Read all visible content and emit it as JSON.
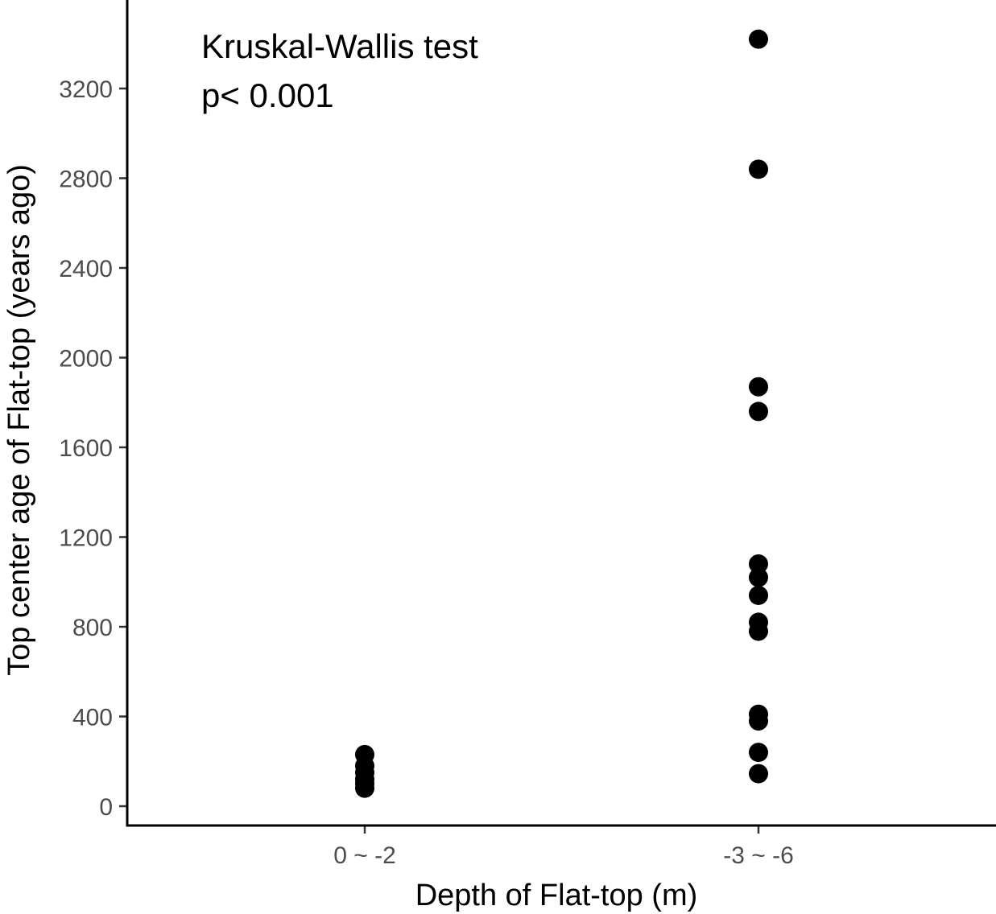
{
  "chart_data": {
    "type": "scatter",
    "title": "",
    "xlabel": "Depth of Flat-top (m)",
    "ylabel": "Top center age of Flat-top (years ago)",
    "categories": [
      "0 ~ -2",
      "-3 ~ -6"
    ],
    "ylim": [
      -80,
      3500
    ],
    "yticks": [
      0,
      400,
      800,
      1200,
      1600,
      2000,
      2400,
      2800,
      3200
    ],
    "grid": false,
    "legend": "none",
    "point_color": "#000000",
    "series": [
      {
        "category": "0 ~ -2",
        "values": [
          230,
          180,
          150,
          120,
          100,
          80
        ]
      },
      {
        "category": "-3 ~ -6",
        "values": [
          3420,
          2840,
          1870,
          1760,
          1080,
          1020,
          940,
          820,
          780,
          410,
          380,
          240,
          145
        ]
      }
    ],
    "annotations": [
      {
        "line1": "Kruskal-Wallis test",
        "line2": "p< 0.001"
      }
    ]
  }
}
